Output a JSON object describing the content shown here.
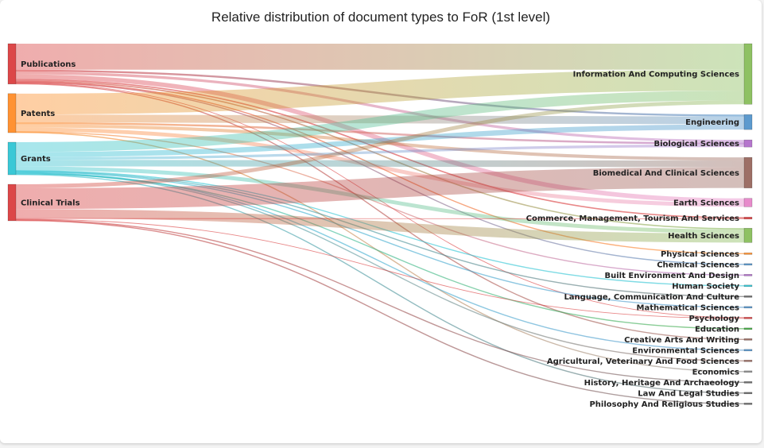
{
  "chart_data": {
    "type": "sankey",
    "title": "Relative distribution of document types to FoR (1st level)",
    "sources": [
      {
        "name": "Publications",
        "color": "#d62728"
      },
      {
        "name": "Patents",
        "color": "#ff7f0e"
      },
      {
        "name": "Grants",
        "color": "#17becf"
      },
      {
        "name": "Clinical Trials",
        "color": "#d62728"
      }
    ],
    "targets": [
      {
        "name": "Information And Computing Sciences",
        "color": "#7ab648"
      },
      {
        "name": "Engineering",
        "color": "#3f88c5"
      },
      {
        "name": "Biological Sciences",
        "color": "#a85ec4"
      },
      {
        "name": "Biomedical And Clinical Sciences",
        "color": "#8c564b"
      },
      {
        "name": "Earth Sciences",
        "color": "#e377c2"
      },
      {
        "name": "Commerce, Management, Tourism And Services",
        "color": "#d62728"
      },
      {
        "name": "Health Sciences",
        "color": "#7ab648"
      },
      {
        "name": "Physical Sciences",
        "color": "#ff7f0e"
      },
      {
        "name": "Chemical Sciences",
        "color": "#3f88c5"
      },
      {
        "name": "Built Environment And Design",
        "color": "#a85ec4"
      },
      {
        "name": "Human Society",
        "color": "#17becf"
      },
      {
        "name": "Language, Communication And Culture",
        "color": "#555555"
      },
      {
        "name": "Mathematical Sciences",
        "color": "#3f88c5"
      },
      {
        "name": "Psychology",
        "color": "#d62728"
      },
      {
        "name": "Education",
        "color": "#2ca02c"
      },
      {
        "name": "Creative Arts And Writing",
        "color": "#8c564b"
      },
      {
        "name": "Environmental Sciences",
        "color": "#3f88c5"
      },
      {
        "name": "Agricultural, Veterinary And Food Sciences",
        "color": "#8c564b"
      },
      {
        "name": "Economics",
        "color": "#7f7f7f"
      },
      {
        "name": "History, Heritage And Archaeology",
        "color": "#555555"
      },
      {
        "name": "Law And Legal Studies",
        "color": "#555555"
      },
      {
        "name": "Philosophy And Religious Studies",
        "color": "#555555"
      }
    ],
    "links": [
      {
        "source": "Publications",
        "target": "Information And Computing Sciences",
        "value": 40
      },
      {
        "source": "Publications",
        "target": "Engineering",
        "value": 3
      },
      {
        "source": "Publications",
        "target": "Biological Sciences",
        "value": 4
      },
      {
        "source": "Publications",
        "target": "Earth Sciences",
        "value": 7
      },
      {
        "source": "Publications",
        "target": "Commerce, Management, Tourism And Services",
        "value": 2
      },
      {
        "source": "Publications",
        "target": "Health Sciences",
        "value": 2
      },
      {
        "source": "Publications",
        "target": "Physical Sciences",
        "value": 1
      },
      {
        "source": "Publications",
        "target": "Chemical Sciences",
        "value": 1
      },
      {
        "source": "Publications",
        "target": "Psychology",
        "value": 1
      },
      {
        "source": "Publications",
        "target": "Creative Arts And Writing",
        "value": 1
      },
      {
        "source": "Patents",
        "target": "Information And Computing Sciences",
        "value": 32
      },
      {
        "source": "Patents",
        "target": "Engineering",
        "value": 12
      },
      {
        "source": "Patents",
        "target": "Biological Sciences",
        "value": 3
      },
      {
        "source": "Patents",
        "target": "Biomedical And Clinical Sciences",
        "value": 5
      },
      {
        "source": "Patents",
        "target": "Earth Sciences",
        "value": 6
      },
      {
        "source": "Patents",
        "target": "Built Environment And Design",
        "value": 1
      },
      {
        "source": "Patents",
        "target": "Economics",
        "value": 1
      },
      {
        "source": "Grants",
        "target": "Information And Computing Sciences",
        "value": 15
      },
      {
        "source": "Grants",
        "target": "Engineering",
        "value": 8
      },
      {
        "source": "Grants",
        "target": "Biological Sciences",
        "value": 4
      },
      {
        "source": "Grants",
        "target": "Biomedical And Clinical Sciences",
        "value": 10
      },
      {
        "source": "Grants",
        "target": "Health Sciences",
        "value": 6
      },
      {
        "source": "Grants",
        "target": "Human Society",
        "value": 1
      },
      {
        "source": "Grants",
        "target": "Language, Communication And Culture",
        "value": 1
      },
      {
        "source": "Grants",
        "target": "Mathematical Sciences",
        "value": 1
      },
      {
        "source": "Grants",
        "target": "Environmental Sciences",
        "value": 1
      },
      {
        "source": "Grants",
        "target": "Agricultural, Veterinary And Food Sciences",
        "value": 1
      },
      {
        "source": "Grants",
        "target": "Education",
        "value": 1
      },
      {
        "source": "Grants",
        "target": "Law And Legal Studies",
        "value": 1
      },
      {
        "source": "Clinical Trials",
        "target": "Information And Computing Sciences",
        "value": 6
      },
      {
        "source": "Clinical Trials",
        "target": "Biomedical And Clinical Sciences",
        "value": 32
      },
      {
        "source": "Clinical Trials",
        "target": "Health Sciences",
        "value": 14
      },
      {
        "source": "Clinical Trials",
        "target": "Commerce, Management, Tourism And Services",
        "value": 1
      },
      {
        "source": "Clinical Trials",
        "target": "Psychology",
        "value": 1
      },
      {
        "source": "Clinical Trials",
        "target": "History, Heritage And Archaeology",
        "value": 1
      },
      {
        "source": "Clinical Trials",
        "target": "Philosophy And Religious Studies",
        "value": 1
      }
    ]
  }
}
